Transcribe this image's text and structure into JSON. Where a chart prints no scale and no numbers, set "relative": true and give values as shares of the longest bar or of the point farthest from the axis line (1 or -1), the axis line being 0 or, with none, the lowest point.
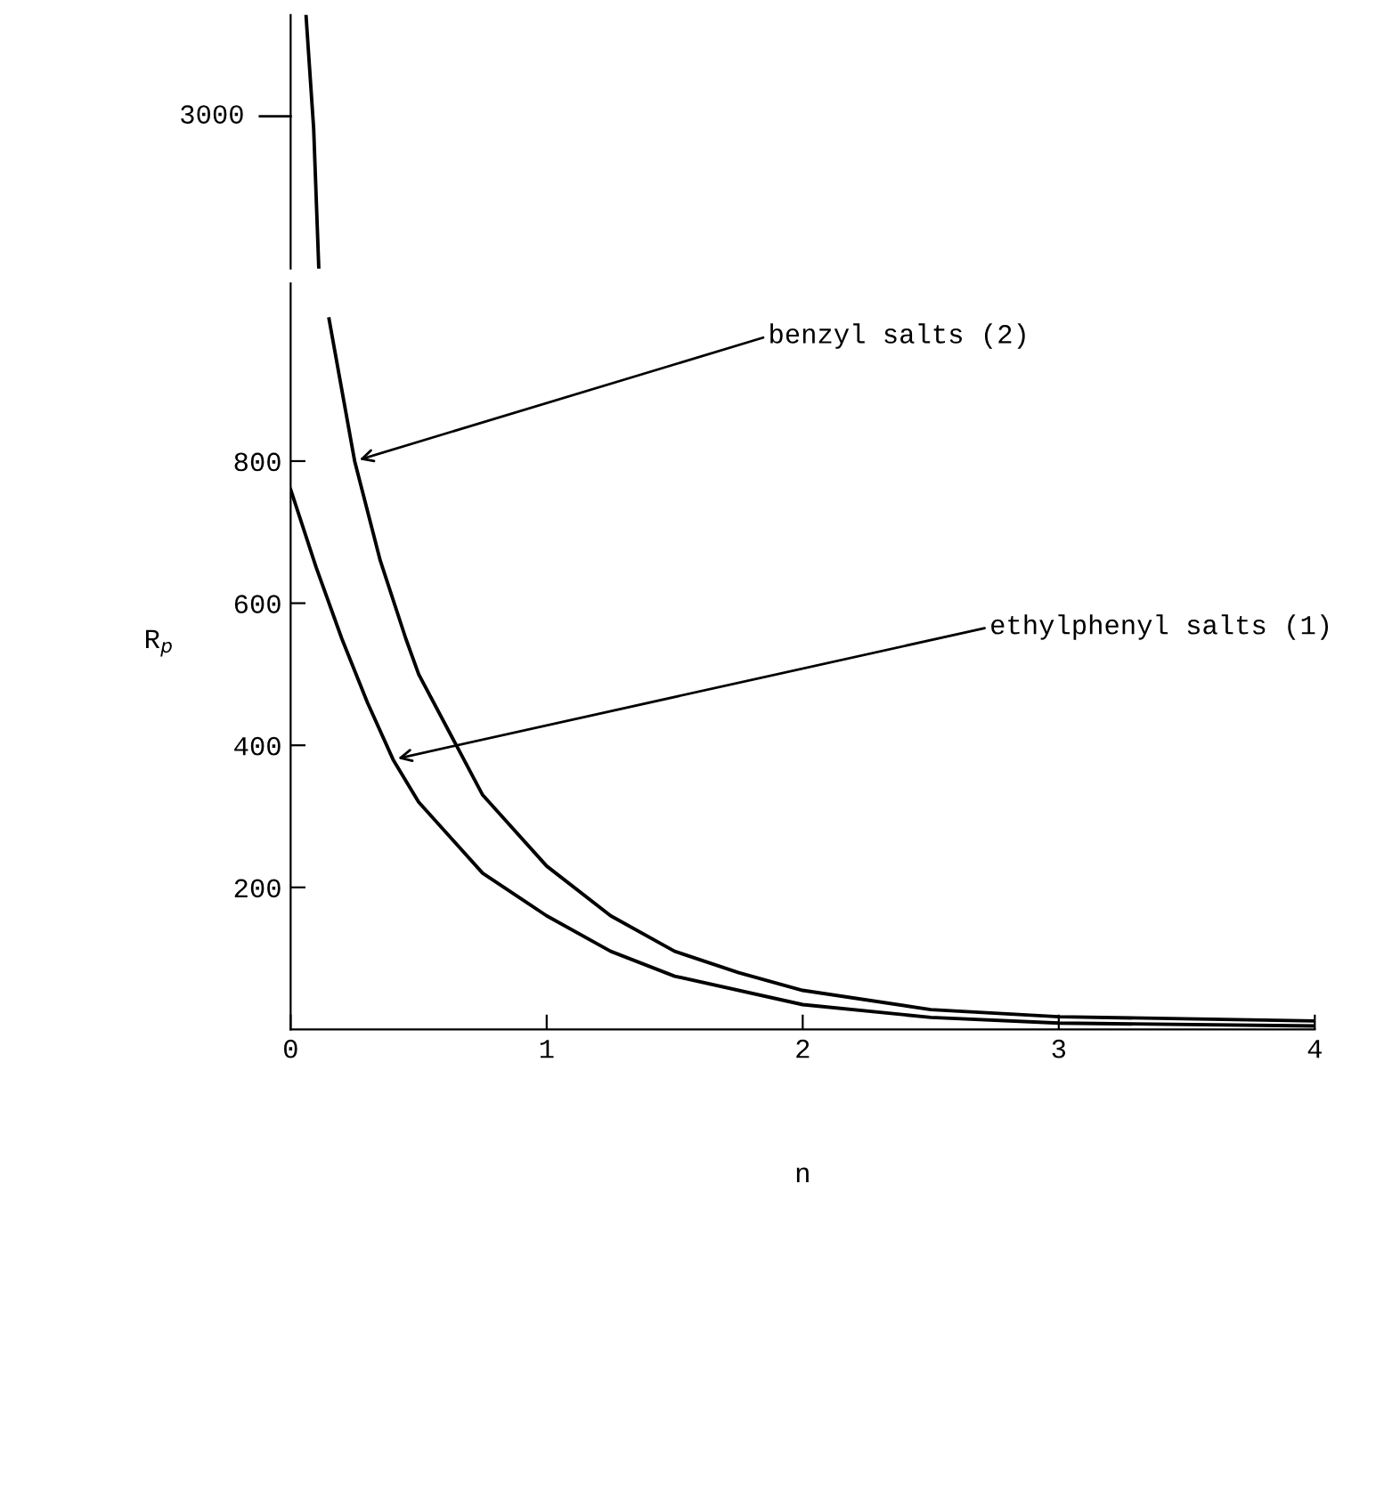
{
  "chart_data": [
    {
      "type": "line",
      "x": [
        0.06,
        0.09,
        0.11
      ],
      "xlim": [
        0,
        4
      ],
      "relative": true,
      "annotations": [
        "3000"
      ],
      "series": [
        {
          "color": "#000000",
          "values": [
            1,
            0.55,
            0
          ]
        }
      ]
    },
    {
      "type": "line",
      "xlim": [
        0,
        4
      ],
      "xticks": [
        0,
        1,
        2,
        3,
        4
      ],
      "ylim": [
        0,
        1050
      ],
      "yticks": [
        200,
        400,
        600,
        800
      ],
      "xlabel": "n",
      "ylabel": "R$_{p}$",
      "series": [
        {
          "color": "#000000",
          "x": [
            0.15,
            0.2,
            0.25,
            0.35,
            0.45,
            0.5,
            0.75,
            1,
            1.25,
            1.5,
            1.75,
            2,
            2.5,
            3,
            4
          ],
          "values": [
            1000,
            900,
            800,
            660,
            550,
            500,
            330,
            230,
            160,
            110,
            80,
            55,
            28,
            18,
            12
          ]
        },
        {
          "color": "#000000",
          "x": [
            0,
            0.1,
            0.2,
            0.3,
            0.4,
            0.5,
            0.75,
            1,
            1.25,
            1.5,
            2,
            2.5,
            3,
            4
          ],
          "values": [
            760,
            650,
            550,
            460,
            380,
            320,
            220,
            160,
            110,
            75,
            35,
            17,
            9,
            5
          ]
        }
      ],
      "annotations": [
        {
          "text": "benzyl salts (2)",
          "x": 0.25,
          "y": 800
        },
        {
          "text": "ethylphenyl salts (1)",
          "x": 0.4,
          "y": 380
        }
      ]
    }
  ]
}
